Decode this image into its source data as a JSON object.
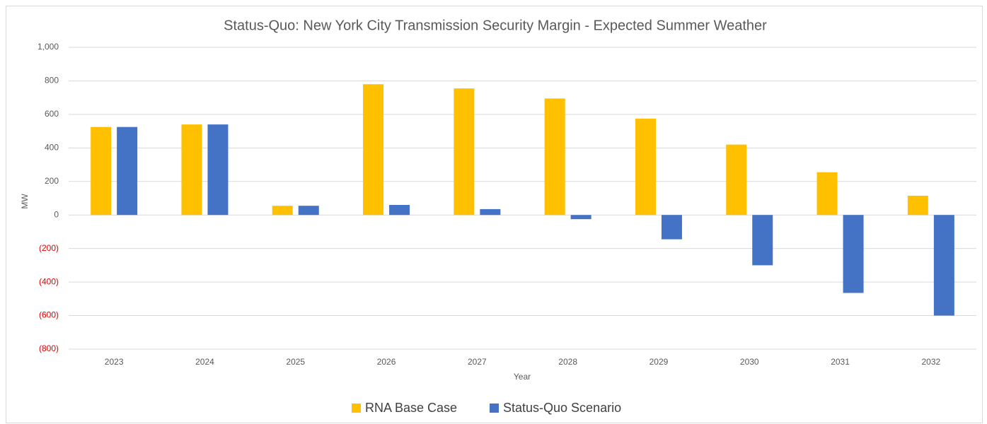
{
  "chart_data": {
    "type": "bar",
    "title": "Status-Quo:  New York City Transmission Security Margin - Expected Summer Weather",
    "x_label": "Year",
    "y_label": "MW",
    "categories": [
      "2023",
      "2024",
      "2025",
      "2026",
      "2027",
      "2028",
      "2029",
      "2030",
      "2031",
      "2032"
    ],
    "series": [
      {
        "name": "RNA Base Case",
        "color": "#ffc000",
        "values": [
          525,
          540,
          55,
          780,
          755,
          695,
          575,
          420,
          255,
          115
        ]
      },
      {
        "name": "Status-Quo Scenario",
        "color": "#4472c4",
        "values": [
          525,
          540,
          55,
          60,
          35,
          -25,
          -145,
          -300,
          -465,
          -600
        ]
      }
    ],
    "ylim": [
      -800,
      1000
    ],
    "yticks": [
      {
        "value": -800,
        "label": "(800)"
      },
      {
        "value": -600,
        "label": "(600)"
      },
      {
        "value": -400,
        "label": "(400)"
      },
      {
        "value": -200,
        "label": "(200)"
      },
      0,
      200,
      400,
      600,
      800,
      {
        "value": 1000,
        "label": "1,000"
      }
    ],
    "negative_tick_color": "#e00000",
    "grid": true,
    "legend": "bottom"
  }
}
